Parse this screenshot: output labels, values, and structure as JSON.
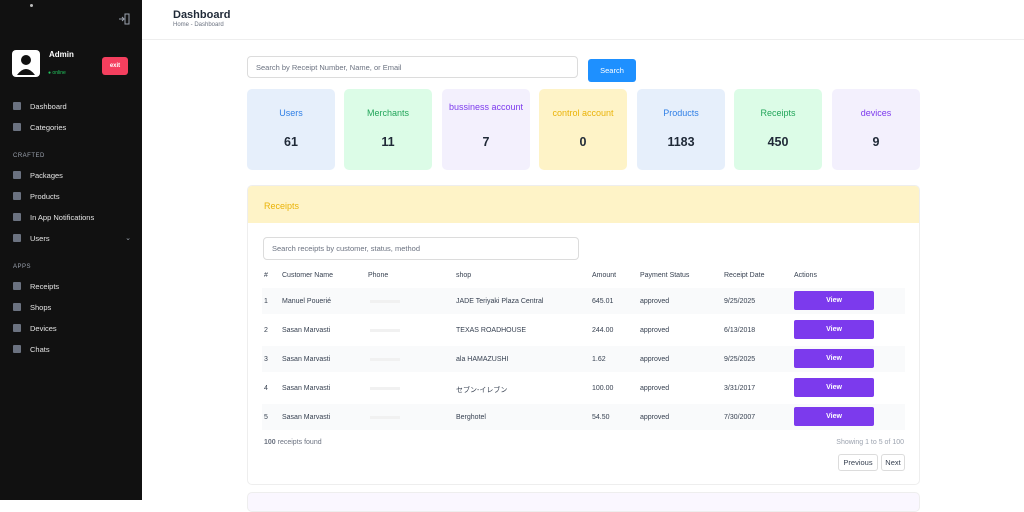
{
  "sidebar": {
    "admin_name": "Admin",
    "status": "● online",
    "exit_label": "exit",
    "items": [
      {
        "label": "Dashboard",
        "icon": "grid-icon"
      },
      {
        "label": "Categories",
        "icon": "category-icon"
      }
    ],
    "crafted_label": "CRAFTED",
    "crafted_items": [
      {
        "label": "Packages",
        "icon": "package-icon"
      },
      {
        "label": "Products",
        "icon": "products-icon"
      },
      {
        "label": "In App Notifications",
        "icon": "notification-icon"
      },
      {
        "label": "Users",
        "icon": "users-icon"
      }
    ],
    "apps_label": "APPS",
    "apps_items": [
      {
        "label": "Receipts",
        "icon": "receipt-icon"
      },
      {
        "label": "Shops",
        "icon": "shop-icon"
      },
      {
        "label": "Devices",
        "icon": "device-icon"
      },
      {
        "label": "Chats",
        "icon": "chat-icon"
      }
    ]
  },
  "header": {
    "title": "Dashboard",
    "breadcrumb": "Home - Dashboard"
  },
  "search": {
    "placeholder": "Search by Receipt Number, Name, or Email",
    "button_label": "Search"
  },
  "stats": [
    {
      "label": "Users",
      "value": "61",
      "color": "#2f7fe6",
      "bg": "#e6effb"
    },
    {
      "label": "Merchants",
      "value": "11",
      "color": "#22a55a",
      "bg": "#dcfce7"
    },
    {
      "label": "bussiness account",
      "value": "7",
      "color": "#7c3aed",
      "bg": "#f3f0fd"
    },
    {
      "label": "control account",
      "value": "0",
      "color": "#eab308",
      "bg": "#fef3c7"
    },
    {
      "label": "Products",
      "value": "1183",
      "color": "#2f7fe6",
      "bg": "#e6effb"
    },
    {
      "label": "Receipts",
      "value": "450",
      "color": "#22a55a",
      "bg": "#dcfce7"
    },
    {
      "label": "devices",
      "value": "9",
      "color": "#7c3aed",
      "bg": "#f3f0fd"
    }
  ],
  "receipts": {
    "title": "Receipts",
    "search_placeholder": "Search receipts by customer, status, method",
    "columns": [
      "#",
      "Customer Name",
      "Phone",
      "shop",
      "Amount",
      "Payment Status",
      "Receipt Date",
      "Actions"
    ],
    "rows": [
      {
        "num": "1",
        "customer": "Manuel Pouerié",
        "shop": "JADE Teriyaki Plaza Central",
        "amount": "645.01",
        "status": "approved",
        "date": "9/25/2025",
        "action": "View"
      },
      {
        "num": "2",
        "customer": "Sasan Marvasti",
        "shop": "TEXAS ROADHOUSE",
        "amount": "244.00",
        "status": "approved",
        "date": "6/13/2018",
        "action": "View"
      },
      {
        "num": "3",
        "customer": "Sasan Marvasti",
        "shop": "ala HAMAZUSHI",
        "amount": "1.62",
        "status": "approved",
        "date": "9/25/2025",
        "action": "View"
      },
      {
        "num": "4",
        "customer": "Sasan Marvasti",
        "shop": "セブン-イレブン",
        "amount": "100.00",
        "status": "approved",
        "date": "3/31/2017",
        "action": "View"
      },
      {
        "num": "5",
        "customer": "Sasan Marvasti",
        "shop": "Berghotel",
        "amount": "54.50",
        "status": "approved",
        "date": "7/30/2007",
        "action": "View"
      }
    ],
    "found_count": "100",
    "found_text": " receipts found",
    "showing": "Showing 1 to 5 of 100",
    "prev_label": "Previous",
    "next_label": "Next"
  }
}
